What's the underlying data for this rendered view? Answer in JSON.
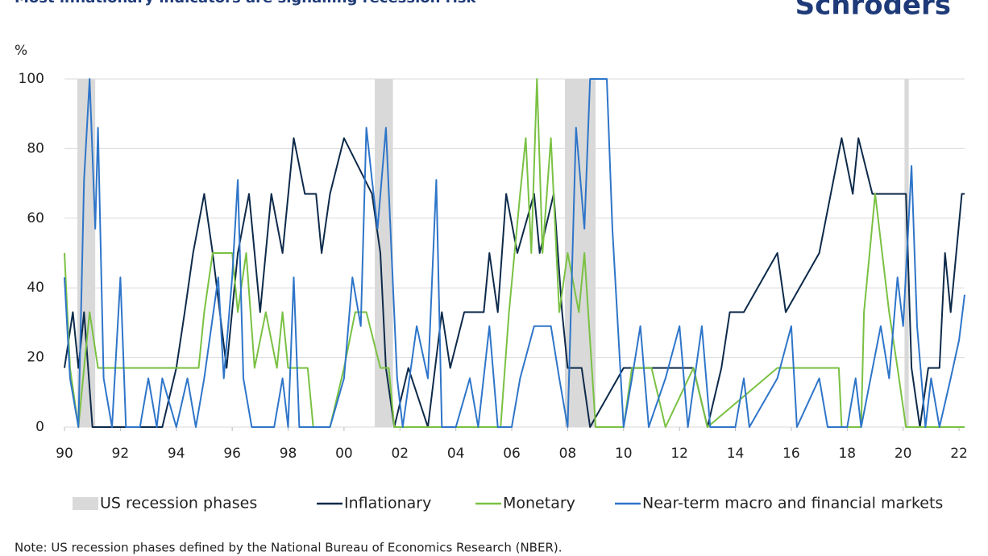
{
  "title": "Most inflationary indicators are signalling recession risk",
  "logo": "Schroders",
  "note": "Note: US recession phases defined by the National Bureau of Economics Research (NBER).",
  "chart_data": {
    "type": "line",
    "y_unit": "%",
    "xlim": [
      1990,
      2022.2
    ],
    "ylim": [
      0,
      100
    ],
    "xticks": [
      {
        "value": 1990,
        "label": "90"
      },
      {
        "value": 1992,
        "label": "92"
      },
      {
        "value": 1994,
        "label": "94"
      },
      {
        "value": 1996,
        "label": "96"
      },
      {
        "value": 1998,
        "label": "98"
      },
      {
        "value": 2000,
        "label": "00"
      },
      {
        "value": 2002,
        "label": "02"
      },
      {
        "value": 2004,
        "label": "04"
      },
      {
        "value": 2006,
        "label": "06"
      },
      {
        "value": 2008,
        "label": "08"
      },
      {
        "value": 2010,
        "label": "10"
      },
      {
        "value": 2012,
        "label": "12"
      },
      {
        "value": 2014,
        "label": "14"
      },
      {
        "value": 2016,
        "label": "16"
      },
      {
        "value": 2018,
        "label": "18"
      },
      {
        "value": 2020,
        "label": "20"
      },
      {
        "value": 2022,
        "label": "22"
      }
    ],
    "yticks": [
      0,
      20,
      40,
      60,
      80,
      100
    ],
    "grid": true,
    "shaded": {
      "name": "US recession phases",
      "color": "#d9d9d9",
      "ranges": [
        [
          1990.46,
          1991.1
        ],
        [
          2001.1,
          2001.75
        ],
        [
          2007.9,
          2009.0
        ],
        [
          2020.05,
          2020.2
        ]
      ]
    },
    "series": [
      {
        "name": "Inflationary",
        "color": "#0d2a4a",
        "x": [
          1990.0,
          1990.3,
          1990.5,
          1990.7,
          1991.0,
          1993.5,
          1994.0,
          1994.3,
          1994.6,
          1995.0,
          1995.3,
          1995.8,
          1996.2,
          1996.6,
          1997.0,
          1997.4,
          1997.8,
          1998.2,
          1998.6,
          1999.0,
          1999.2,
          1999.5,
          2000.0,
          2001.0,
          2001.3,
          2001.5,
          2001.8,
          2002.3,
          2003.0,
          2003.5,
          2003.8,
          2004.3,
          2005.0,
          2005.2,
          2005.5,
          2005.8,
          2006.2,
          2006.8,
          2007.0,
          2007.5,
          2007.8,
          2008.0,
          2008.5,
          2008.8,
          2010.0,
          2012.5,
          2013.0,
          2013.5,
          2013.8,
          2014.3,
          2015.5,
          2015.8,
          2017.0,
          2017.8,
          2018.2,
          2018.4,
          2018.9,
          2020.1,
          2020.3,
          2020.6,
          2020.9,
          2021.3,
          2021.5,
          2021.7,
          2021.9,
          2022.1,
          2022.2
        ],
        "values": [
          17,
          33,
          17,
          33,
          0,
          0,
          17,
          33,
          50,
          67,
          50,
          17,
          50,
          67,
          33,
          67,
          50,
          83,
          67,
          67,
          50,
          67,
          83,
          67,
          50,
          17,
          0,
          17,
          0,
          33,
          17,
          33,
          33,
          50,
          33,
          67,
          50,
          67,
          50,
          67,
          33,
          17,
          17,
          0,
          17,
          17,
          0,
          17,
          33,
          33,
          50,
          33,
          50,
          83,
          67,
          83,
          67,
          67,
          17,
          0,
          17,
          17,
          50,
          33,
          50,
          67,
          67
        ]
      },
      {
        "name": "Monetary",
        "color": "#7ac143",
        "x": [
          1990.0,
          1990.2,
          1990.5,
          1990.7,
          1990.9,
          1991.2,
          1994.8,
          1995.0,
          1995.3,
          1996.0,
          1996.2,
          1996.5,
          1996.8,
          1997.2,
          1997.6,
          1997.8,
          1998.0,
          1998.7,
          1998.9,
          1999.5,
          2000.0,
          2000.4,
          2000.8,
          2001.3,
          2001.6,
          2001.8,
          2005.6,
          2005.9,
          2006.3,
          2006.5,
          2006.7,
          2006.9,
          2007.1,
          2007.4,
          2007.7,
          2008.0,
          2008.4,
          2008.6,
          2009.0,
          2010.0,
          2010.3,
          2011.0,
          2011.5,
          2012.5,
          2013.0,
          2015.5,
          2016.4,
          2017.7,
          2017.8,
          2018.5,
          2018.6,
          2018.8,
          2019.0,
          2019.5,
          2019.8,
          2020.1,
          2022.2
        ],
        "values": [
          50,
          17,
          0,
          17,
          33,
          17,
          17,
          33,
          50,
          50,
          33,
          50,
          17,
          33,
          17,
          33,
          17,
          17,
          0,
          0,
          17,
          33,
          33,
          17,
          17,
          0,
          0,
          33,
          67,
          83,
          50,
          100,
          50,
          83,
          33,
          50,
          33,
          50,
          0,
          0,
          17,
          17,
          0,
          17,
          0,
          17,
          17,
          17,
          0,
          0,
          33,
          50,
          67,
          33,
          17,
          0,
          0
        ]
      },
      {
        "name": "Near-term macro and financial markets",
        "color": "#2e75c9",
        "x": [
          1990.0,
          1990.2,
          1990.5,
          1990.7,
          1990.9,
          1991.1,
          1991.2,
          1991.4,
          1991.7,
          1992.0,
          1992.2,
          1992.7,
          1993.0,
          1993.3,
          1993.5,
          1994.0,
          1994.4,
          1994.7,
          1995.0,
          1995.5,
          1995.7,
          1996.0,
          1996.2,
          1996.4,
          1996.7,
          1997.5,
          1997.8,
          1998.0,
          1998.2,
          1998.4,
          1999.5,
          2000.0,
          2000.3,
          2000.6,
          2000.8,
          2001.0,
          2001.2,
          2001.5,
          2001.9,
          2002.1,
          2002.6,
          2003.0,
          2003.3,
          2003.5,
          2004.0,
          2004.5,
          2004.8,
          2005.2,
          2005.5,
          2006.0,
          2006.3,
          2006.8,
          2007.4,
          2007.7,
          2008.0,
          2008.3,
          2008.6,
          2008.8,
          2009.4,
          2009.6,
          2010.0,
          2010.3,
          2010.6,
          2010.9,
          2011.5,
          2012.0,
          2012.3,
          2012.8,
          2013.1,
          2014.0,
          2014.3,
          2014.5,
          2015.5,
          2016.0,
          2016.2,
          2017.0,
          2017.3,
          2018.0,
          2018.3,
          2018.5,
          2019.2,
          2019.5,
          2019.8,
          2020.0,
          2020.3,
          2020.5,
          2020.8,
          2021.0,
          2021.3,
          2021.7,
          2022.0,
          2022.2
        ],
        "values": [
          43,
          14,
          0,
          71,
          100,
          57,
          86,
          14,
          0,
          43,
          0,
          0,
          14,
          0,
          14,
          0,
          14,
          0,
          14,
          43,
          14,
          43,
          71,
          14,
          0,
          0,
          14,
          0,
          43,
          0,
          0,
          14,
          43,
          29,
          86,
          71,
          57,
          86,
          14,
          0,
          29,
          14,
          71,
          0,
          0,
          14,
          0,
          29,
          0,
          0,
          14,
          29,
          29,
          14,
          0,
          86,
          57,
          100,
          100,
          57,
          0,
          14,
          29,
          0,
          14,
          29,
          0,
          29,
          0,
          0,
          14,
          0,
          14,
          29,
          0,
          14,
          0,
          0,
          14,
          0,
          29,
          14,
          43,
          29,
          75,
          29,
          0,
          14,
          0,
          14,
          25,
          38
        ]
      }
    ]
  }
}
